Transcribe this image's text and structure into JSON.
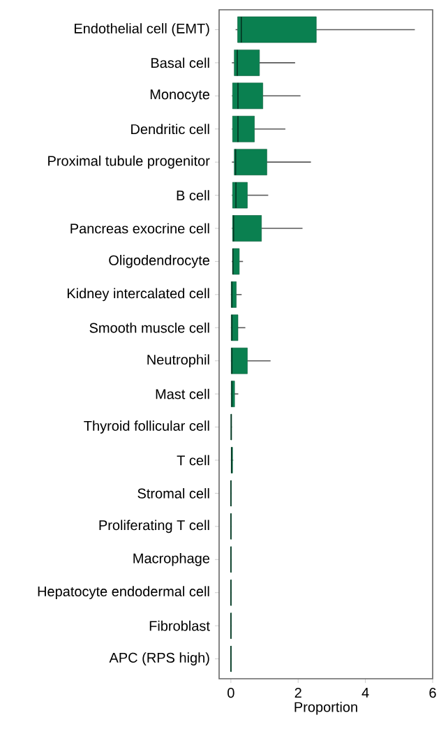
{
  "chart_data": {
    "type": "box",
    "orientation": "horizontal",
    "xlabel": "Proportion",
    "xlim": [
      -0.35,
      6
    ],
    "xticks": [
      0,
      2,
      4,
      6
    ],
    "color": "#0a8050",
    "categories": [
      "Endothelial cell (EMT)",
      "Basal cell",
      "Monocyte",
      "Dendritic cell",
      "Proximal tubule progenitor",
      "B cell",
      "Pancreas exocrine cell",
      "Oligodendrocyte",
      "Kidney intercalated cell",
      "Smooth muscle cell",
      "Neutrophil",
      "Mast cell",
      "Thyroid follicular cell",
      "T cell",
      "Stromal cell",
      "Proliferating T cell",
      "Macrophage",
      "Hepatocyte endodermal cell",
      "Fibroblast",
      "APC (RPS high)"
    ],
    "boxes": [
      {
        "low": 0.14,
        "q1": 0.2,
        "median": 0.31,
        "q3": 2.54,
        "high": 5.47
      },
      {
        "low": 0.03,
        "q1": 0.1,
        "median": 0.19,
        "q3": 0.85,
        "high": 1.91
      },
      {
        "low": 0.03,
        "q1": 0.05,
        "median": 0.21,
        "q3": 0.95,
        "high": 2.07
      },
      {
        "low": 0.03,
        "q1": 0.05,
        "median": 0.21,
        "q3": 0.7,
        "high": 1.62
      },
      {
        "low": 0.03,
        "q1": 0.1,
        "median": 0.14,
        "q3": 1.07,
        "high": 2.38
      },
      {
        "low": 0.03,
        "q1": 0.05,
        "median": 0.15,
        "q3": 0.49,
        "high": 1.11
      },
      {
        "low": 0.03,
        "q1": 0.05,
        "median": 0.08,
        "q3": 0.91,
        "high": 2.13
      },
      {
        "low": 0.03,
        "q1": 0.05,
        "median": 0.06,
        "q3": 0.25,
        "high": 0.36
      },
      {
        "low": 0,
        "q1": 0.01,
        "median": 0.03,
        "q3": 0.16,
        "high": 0.32
      },
      {
        "low": 0,
        "q1": 0.01,
        "median": 0.03,
        "q3": 0.21,
        "high": 0.43
      },
      {
        "low": 0,
        "q1": 0.01,
        "median": 0.03,
        "q3": 0.49,
        "high": 1.18
      },
      {
        "low": 0,
        "q1": 0.01,
        "median": 0.03,
        "q3": 0.11,
        "high": 0.22
      },
      {
        "low": 0,
        "q1": 0,
        "median": 0.01,
        "q3": 0.02,
        "high": 0.03
      },
      {
        "low": 0,
        "q1": 0.01,
        "median": 0.02,
        "q3": 0.05,
        "high": 0.07
      },
      {
        "low": 0,
        "q1": 0,
        "median": 0,
        "q3": 0.01,
        "high": 0.02
      },
      {
        "low": 0,
        "q1": 0,
        "median": 0,
        "q3": 0.01,
        "high": 0.02
      },
      {
        "low": 0,
        "q1": 0,
        "median": 0,
        "q3": 0.01,
        "high": 0.02
      },
      {
        "low": 0,
        "q1": 0,
        "median": 0,
        "q3": 0.01,
        "high": 0.02
      },
      {
        "low": 0,
        "q1": 0,
        "median": 0,
        "q3": 0.01,
        "high": 0.02
      },
      {
        "low": 0,
        "q1": 0,
        "median": 0,
        "q3": 0.01,
        "high": 0.02
      }
    ]
  }
}
